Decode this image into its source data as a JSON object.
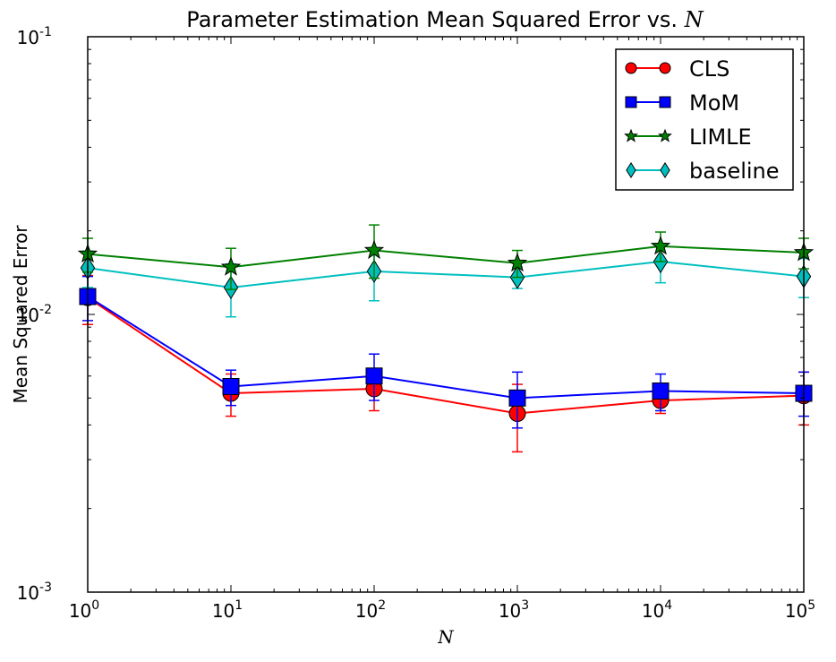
{
  "chart_data": {
    "type": "line",
    "title": "Parameter Estimation Mean Squared Error vs. ",
    "title_var": "N",
    "xlabel": "N",
    "ylabel": "Mean Squared Error",
    "xscale": "log",
    "yscale": "log",
    "xlim": [
      1,
      100000
    ],
    "ylim": [
      0.001,
      0.1
    ],
    "x": [
      1,
      10,
      100,
      1000,
      10000,
      100000
    ],
    "x_tick_labels": [
      {
        "base": "10",
        "exp": "0"
      },
      {
        "base": "10",
        "exp": "1"
      },
      {
        "base": "10",
        "exp": "2"
      },
      {
        "base": "10",
        "exp": "3"
      },
      {
        "base": "10",
        "exp": "4"
      },
      {
        "base": "10",
        "exp": "5"
      }
    ],
    "y_tick_values": [
      0.001,
      0.01,
      0.1
    ],
    "y_tick_labels": [
      {
        "base": "10",
        "exp": "-3"
      },
      {
        "base": "10",
        "exp": "-2"
      },
      {
        "base": "10",
        "exp": "-1"
      }
    ],
    "legend_position": "top-right",
    "series": [
      {
        "name": "CLS",
        "color": "#ff0000",
        "marker": "circle",
        "values": [
          0.0115,
          0.0052,
          0.0054,
          0.0044,
          0.0049,
          0.0051
        ],
        "err_low": [
          0.0092,
          0.0043,
          0.0045,
          0.0032,
          0.0044,
          0.004
        ],
        "err_high": [
          0.0138,
          0.0061,
          0.0063,
          0.0056,
          0.0054,
          0.0062
        ]
      },
      {
        "name": "MoM",
        "color": "#0000ff",
        "marker": "square",
        "values": [
          0.0116,
          0.0055,
          0.006,
          0.005,
          0.0053,
          0.0052
        ],
        "err_low": [
          0.0095,
          0.0047,
          0.0049,
          0.0039,
          0.0045,
          0.0043
        ],
        "err_high": [
          0.0137,
          0.0063,
          0.0072,
          0.0062,
          0.0061,
          0.0062
        ]
      },
      {
        "name": "LIMLE",
        "color": "#008000",
        "marker": "star",
        "values": [
          0.0165,
          0.0148,
          0.017,
          0.0153,
          0.0176,
          0.0167
        ],
        "err_low": [
          0.0142,
          0.0123,
          0.0135,
          0.0136,
          0.0155,
          0.0146
        ],
        "err_high": [
          0.0188,
          0.0173,
          0.021,
          0.017,
          0.0198,
          0.0188
        ]
      },
      {
        "name": "baseline",
        "color": "#00bfbf",
        "marker": "diamond",
        "values": [
          0.0147,
          0.0125,
          0.0143,
          0.0136,
          0.0155,
          0.0137
        ],
        "err_low": [
          0.0125,
          0.0098,
          0.0112,
          0.0124,
          0.013,
          0.0115
        ],
        "err_high": [
          0.0169,
          0.0152,
          0.0174,
          0.0148,
          0.018,
          0.0159
        ]
      }
    ]
  }
}
